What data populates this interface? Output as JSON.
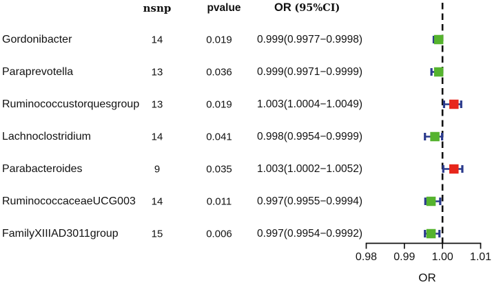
{
  "header": {
    "nsnp": "nsnp",
    "pvalue": "pvalue",
    "or": "OR",
    "ci": "(95%CI)"
  },
  "colors": {
    "marker_protective": "#55b32e",
    "marker_risk": "#e7261b",
    "ci_bar": "#2a3a8c",
    "axis_text": "#111111"
  },
  "chart_data": {
    "type": "scatter",
    "variant": "forest-plot",
    "title": "",
    "xlabel": "OR",
    "xlim": [
      0.98,
      1.01
    ],
    "x_ticks": [
      "0.98",
      "0.99",
      "1.00",
      "1.01"
    ],
    "x_tick_values": [
      0.98,
      0.99,
      1.0,
      1.01
    ],
    "reference_line_x": 1.0,
    "reference_line_style": "dashed",
    "grid": false,
    "legend": "none",
    "columns": [
      "",
      "nsnp",
      "pvalue",
      "OR (95%CI)"
    ],
    "rows": [
      {
        "label": "Gordonibacter",
        "nsnp": "14",
        "pvalue": "0.019",
        "or_text": "0.999(0.9977−0.9998)",
        "or": 0.999,
        "ci_low": 0.9977,
        "ci_high": 0.9998
      },
      {
        "label": "Paraprevotella",
        "nsnp": "13",
        "pvalue": "0.036",
        "or_text": "0.999(0.9971−0.9999)",
        "or": 0.999,
        "ci_low": 0.9971,
        "ci_high": 0.9999
      },
      {
        "label": "Ruminococcustorquesgroup",
        "nsnp": "13",
        "pvalue": "0.019",
        "or_text": "1.003(1.0004−1.0049)",
        "or": 1.003,
        "ci_low": 1.0004,
        "ci_high": 1.0049
      },
      {
        "label": "Lachnoclostridium",
        "nsnp": "14",
        "pvalue": "0.041",
        "or_text": "0.998(0.9954−0.9999)",
        "or": 0.998,
        "ci_low": 0.9954,
        "ci_high": 0.9999
      },
      {
        "label": "Parabacteroides",
        "nsnp": "9",
        "pvalue": "0.035",
        "or_text": "1.003(1.0002−1.0052)",
        "or": 1.003,
        "ci_low": 1.0002,
        "ci_high": 1.0052
      },
      {
        "label": "RuminococcaceaeUCG003",
        "nsnp": "14",
        "pvalue": "0.011",
        "or_text": "0.997(0.9955−0.9994)",
        "or": 0.997,
        "ci_low": 0.9955,
        "ci_high": 0.9994
      },
      {
        "label": "FamilyXIIIAD3011group",
        "nsnp": "15",
        "pvalue": "0.006",
        "or_text": "0.997(0.9954−0.9992)",
        "or": 0.997,
        "ci_low": 0.9954,
        "ci_high": 0.9992
      }
    ]
  }
}
